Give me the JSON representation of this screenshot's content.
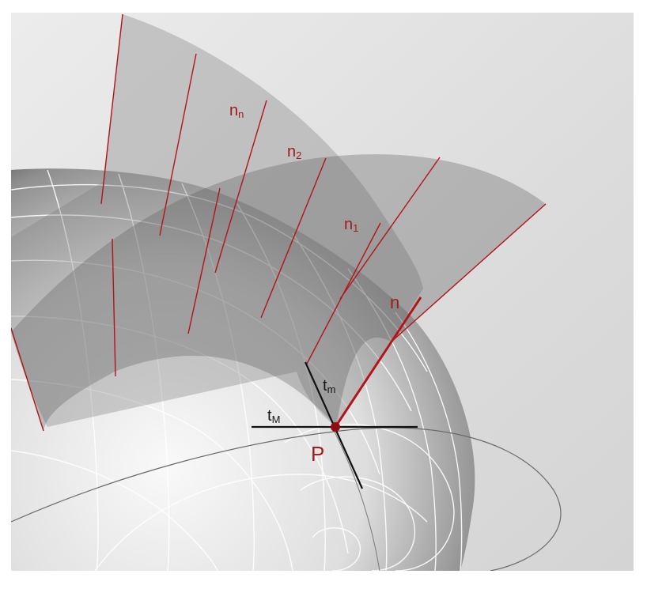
{
  "labels": {
    "n_n": {
      "main": "n",
      "sub": "n"
    },
    "n_2": {
      "main": "n",
      "sub": "2"
    },
    "n_1": {
      "main": "n",
      "sub": "1"
    },
    "n": {
      "main": "n"
    },
    "t_m": {
      "main": "t",
      "sub": "m"
    },
    "t_M": {
      "main": "t",
      "sub": "M"
    },
    "P": {
      "main": "P"
    }
  },
  "colors": {
    "normal_line": "#b3141a",
    "tangent_line": "#111111",
    "point": "#8c1010",
    "grid": "#ffffff",
    "label_red": "#a01c1c"
  }
}
